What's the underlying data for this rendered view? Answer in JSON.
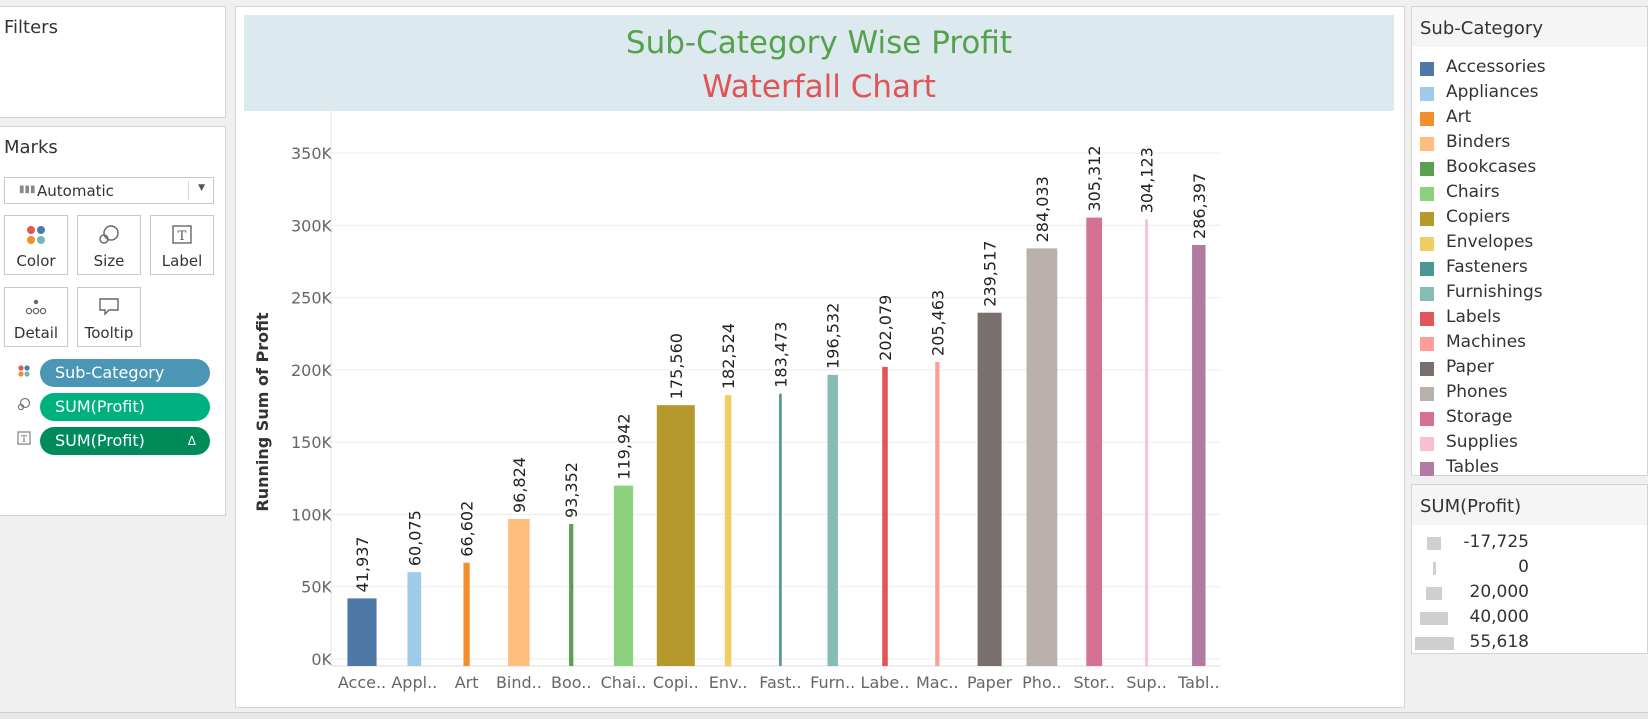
{
  "filters": {
    "title": "Filters"
  },
  "marks": {
    "title": "Marks",
    "mark_type": "Automatic",
    "buttons": [
      {
        "label": "Color",
        "icon": "color-icon"
      },
      {
        "label": "Size",
        "icon": "size-icon"
      },
      {
        "label": "Label",
        "icon": "label-icon"
      },
      {
        "label": "Detail",
        "icon": "detail-icon"
      },
      {
        "label": "Tooltip",
        "icon": "tooltip-icon"
      }
    ],
    "pills": [
      {
        "label": "Sub-Category",
        "color": "#4b96b4",
        "icon": "color-icon"
      },
      {
        "label": "SUM(Profit)",
        "color": "#00b180",
        "icon": "size-icon"
      },
      {
        "label": "SUM(Profit)",
        "color": "#008c5a",
        "icon": "label-icon",
        "badge": "Δ"
      }
    ]
  },
  "header": {
    "title": "Sub-Category Wise Profit",
    "subtitle": "Waterfall Chart",
    "title_color": "#56a14b",
    "subtitle_color": "#e05455",
    "band_color": "#dce9ee"
  },
  "chart_data": {
    "type": "bar",
    "subtype": "waterfall (running sum)",
    "ylabel": "Running Sum of Profit",
    "ylim": [
      0,
      360000
    ],
    "yticks": [
      0,
      50000,
      100000,
      150000,
      200000,
      250000,
      300000,
      350000
    ],
    "ytick_labels": [
      "0K",
      "50K",
      "100K",
      "150K",
      "200K",
      "250K",
      "300K",
      "350K"
    ],
    "grid": true,
    "categories": [
      "Accessories",
      "Appliances",
      "Art",
      "Binders",
      "Bookcases",
      "Chairs",
      "Copiers",
      "Envelopes",
      "Fasteners",
      "Furnishings",
      "Labels",
      "Machines",
      "Paper",
      "Phones",
      "Storage",
      "Supplies",
      "Tables"
    ],
    "category_labels": [
      "Acce..",
      "Appl..",
      "Art",
      "Bind..",
      "Boo..",
      "Chai..",
      "Copi..",
      "Env..",
      "Fast..",
      "Furn..",
      "Labe..",
      "Mac..",
      "Paper",
      "Pho..",
      "Stor..",
      "Sup..",
      "Tabl.."
    ],
    "values": [
      41937,
      60075,
      66602,
      96824,
      93352,
      119942,
      175560,
      182524,
      183473,
      196532,
      202079,
      205463,
      239517,
      284033,
      305312,
      304123,
      286397
    ],
    "value_labels": [
      "41,937",
      "60,075",
      "66,602",
      "96,824",
      "93,352",
      "119,942",
      "175,560",
      "182,524",
      "183,473",
      "196,532",
      "202,079",
      "205,463",
      "239,517",
      "284,033",
      "305,312",
      "304,123",
      "286,397"
    ],
    "size_by": "SUM(Profit)",
    "sizes": [
      41937,
      18138,
      6527,
      30222,
      3472,
      26590,
      55618,
      6964,
      949,
      13059,
      5546,
      3385,
      34054,
      44516,
      21279,
      1189,
      17725
    ],
    "colors": [
      "#4e79a7",
      "#a0cbe8",
      "#f28e2b",
      "#ffbe7d",
      "#59a14f",
      "#8cd17d",
      "#b6992d",
      "#f1ce63",
      "#499894",
      "#86bcb6",
      "#e15759",
      "#ff9d9a",
      "#79706e",
      "#bab0ac",
      "#d37295",
      "#fabfd2",
      "#b07aa1"
    ],
    "legend_placement": "right"
  },
  "legend_category": {
    "title": "Sub-Category",
    "items": [
      {
        "label": "Accessories",
        "color": "#4e79a7"
      },
      {
        "label": "Appliances",
        "color": "#a0cbe8"
      },
      {
        "label": "Art",
        "color": "#f28e2b"
      },
      {
        "label": "Binders",
        "color": "#ffbe7d"
      },
      {
        "label": "Bookcases",
        "color": "#59a14f"
      },
      {
        "label": "Chairs",
        "color": "#8cd17d"
      },
      {
        "label": "Copiers",
        "color": "#b6992d"
      },
      {
        "label": "Envelopes",
        "color": "#f1ce63"
      },
      {
        "label": "Fasteners",
        "color": "#499894"
      },
      {
        "label": "Furnishings",
        "color": "#86bcb6"
      },
      {
        "label": "Labels",
        "color": "#e15759"
      },
      {
        "label": "Machines",
        "color": "#ff9d9a"
      },
      {
        "label": "Paper",
        "color": "#79706e"
      },
      {
        "label": "Phones",
        "color": "#bab0ac"
      },
      {
        "label": "Storage",
        "color": "#d37295"
      },
      {
        "label": "Supplies",
        "color": "#fabfd2"
      },
      {
        "label": "Tables",
        "color": "#b07aa1"
      }
    ]
  },
  "legend_size": {
    "title": "SUM(Profit)",
    "items": [
      {
        "label": "-17,725",
        "value": -17725
      },
      {
        "label": "0",
        "value": 0
      },
      {
        "label": "20,000",
        "value": 20000
      },
      {
        "label": "40,000",
        "value": 40000
      },
      {
        "label": "55,618",
        "value": 55618
      }
    ]
  }
}
